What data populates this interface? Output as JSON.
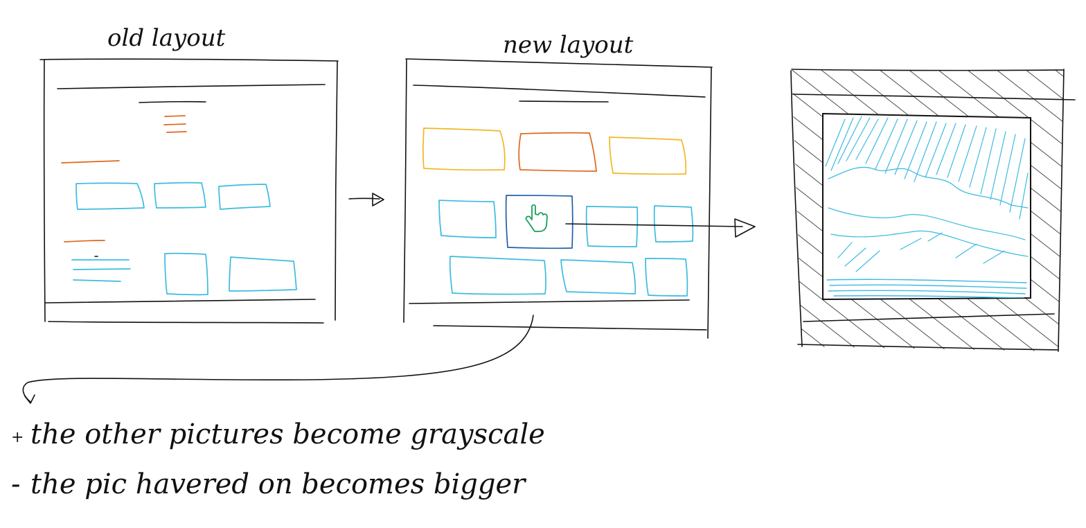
{
  "labels": {
    "old_layout": "old layout",
    "new_layout": "new layout"
  },
  "notes": [
    {
      "marker": "+",
      "text": "the other pictures become grayscale"
    },
    {
      "marker": "-",
      "text": "the pic havered on becomes bigger"
    }
  ],
  "colors": {
    "ink": "#111111",
    "picture_blue": "#3bbbe0",
    "heading_orange": "#e0661c",
    "card_yellow": "#f2b625",
    "hover_border": "#1f5fa8",
    "cursor_green": "#1a9e58",
    "marker_red": "#d22a2a"
  },
  "icons": {
    "cursor": "hand-pointer-icon",
    "arrow": "arrow-right-icon"
  }
}
